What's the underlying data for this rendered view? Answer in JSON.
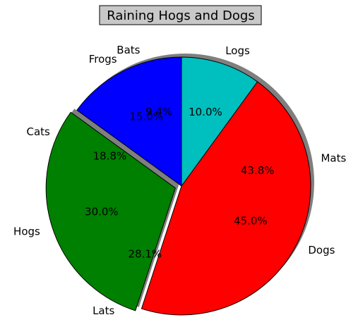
{
  "chart_data": [
    {
      "type": "pie",
      "title": "Raining Hogs and Dogs",
      "labels": [
        "Frogs",
        "Hogs",
        "Dogs",
        "Logs"
      ],
      "values": [
        15,
        30,
        45,
        10
      ],
      "pct_labels": [
        "15.0%",
        "30.0%",
        "45.0%",
        "10.0%"
      ],
      "colors": [
        "#0000ff",
        "#008000",
        "#ff0000",
        "#00bfbf"
      ],
      "explode": [
        0,
        0.05,
        0,
        0
      ],
      "shadow": true,
      "start_angle": 90,
      "label_order": "counterclockwise"
    },
    {
      "type": "pie",
      "labels": [
        "Bats",
        "Cats",
        "Lats",
        "Mats"
      ],
      "values": [
        9.4,
        18.8,
        28.1,
        43.8
      ],
      "pct_labels": [
        "9.4%",
        "18.8%",
        "28.1%",
        "43.8%"
      ],
      "start_angle": 90,
      "label_order": "counterclockwise"
    }
  ]
}
